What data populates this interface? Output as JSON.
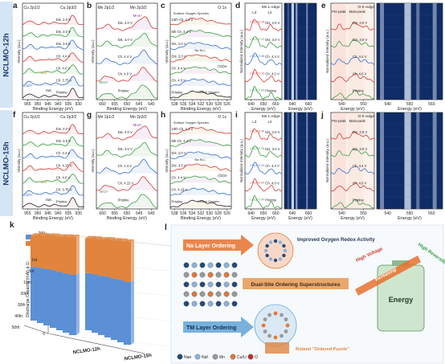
{
  "row_labels": [
    "NCLMO-12h",
    "NCLMO-15h"
  ],
  "panel_letters": [
    "a",
    "b",
    "c",
    "d",
    "e",
    "f",
    "g",
    "h",
    "i",
    "j",
    "k",
    "l"
  ],
  "xps_cu": {
    "xlabel": "Binding Energy (eV)",
    "ylabel": "Intensity (a.u.)",
    "xticks": [
      "955",
      "950",
      "945",
      "940",
      "935",
      "930"
    ],
    "peak_labels": [
      "Cu 2p1/2",
      "Cu 2p3/2"
    ],
    "species": [
      "Cu2+",
      "Sat.",
      "Cu+"
    ],
    "states_a": [
      "Dis. 2.0 V",
      "Dis. 3.0 V",
      "Dis. 3.5 V",
      "Ch. 4.4 V",
      "Ch. 4.0 V",
      "Ch. 3.75 V",
      "Pristine"
    ],
    "states_f": [
      "Dis. 2.0 V",
      "Dis. 3.5 V",
      "Ch. 4.4 V",
      "Ch. 4.15 V",
      "Ch. 4.0 V",
      "Ch. 3.75 V",
      "Pristine"
    ]
  },
  "xps_mn": {
    "xlabel": "Binding Energy (eV)",
    "ylabel": "Intensity (a.u.)",
    "xticks": [
      "660",
      "655",
      "650",
      "645",
      "640"
    ],
    "peak_labels": [
      "Mn 2p1/2",
      "Mn 2p3/2"
    ],
    "species": [
      "Mn4+",
      "Mn3+"
    ],
    "states_b": [
      "Dis. 2.0 V",
      "Dis. 3.0 V",
      "Ch. 4.4 V",
      "Ch. 4.0 V",
      "Pristine"
    ],
    "states_g": [
      "Dis. 2.0 V",
      "Dis. 3.0 V",
      "Ch. 4.4 V",
      "Ch. 4.15 V",
      "Pristine"
    ]
  },
  "xps_o": {
    "xlabel": "Binding Energy (eV)",
    "ylabel": "Intensity (a.u.)",
    "xticks": [
      "538",
      "536",
      "534",
      "532",
      "530",
      "528",
      "526"
    ],
    "title": "O 1s",
    "labels": [
      "Surface Oxygen Species",
      "(O2)n-",
      "Lattice Oxygen",
      "Na KLL"
    ],
    "states_c": [
      "10th Ch. 4.4 V",
      "5th Ch. 4.4 V",
      "Dis. 2.0 V",
      "Dis. 3.0 V",
      "Ch. 4.4 V",
      "Ch. 4.0 V",
      "Pristine"
    ],
    "states_h": [
      "10th Ch. 4.4 V",
      "5th Ch. 4.4 V",
      "Dis. 2.0 V",
      "Dis. 3.5 V",
      "Ch. 4.4 V",
      "Ch. 4.15 V",
      "Pristine"
    ]
  },
  "xas_mn": {
    "title": "Mn L-edge",
    "edge_labels": [
      "L3",
      "L2"
    ],
    "xlabel": "Energy (eV)",
    "ylabel": "Normalized Intensity (a.u.)",
    "xticks": [
      "640",
      "650",
      "660"
    ],
    "map_xticks": [
      "640",
      "660"
    ],
    "states": [
      "Dis. 2.0 V",
      "Dis. 3.0 V",
      "Ch. 4.4 V",
      "Ch. 4.0 V",
      "Pristine"
    ],
    "ratios_d": [
      "L3/L2=2.34",
      "L3/L2=2.22",
      "L3/L2=2.08",
      "L3/L2=2.10",
      "L3/L2=2.05"
    ],
    "ratios_i": [
      "L3/L2=2.40",
      "L3/L2=2.26",
      "L3/L2=2.23",
      "L3/L2=2.04",
      "L3/L2=2.04"
    ]
  },
  "xas_o": {
    "title": "O K-edge",
    "labels": [
      "Pre-peak",
      "Main-peak"
    ],
    "xlabel": "Energy (eV)",
    "ylabel": "Normalized Intensity (a.u.)",
    "xticks": [
      "540",
      "550"
    ],
    "map_xticks": [
      "540",
      "550",
      "560"
    ],
    "states": [
      "Dis. 2.0 V",
      "Dis. 3.0 V",
      "Ch. 4.4 V",
      "Ch. 4.0 V",
      "Pristine"
    ]
  },
  "chart_data": {
    "type": "bar",
    "ylabel": "Discharge Capacity (mAh g-1)",
    "categories": [
      "NCLMO-12h",
      "NCLMO-15h"
    ],
    "cycles": [
      "1st",
      "5th",
      "10th",
      "20th",
      "30th",
      "40th",
      "50th"
    ],
    "zticks": [
      "0",
      "50",
      "100",
      "150",
      "200"
    ],
    "legend_position": "top-left",
    "series": [
      {
        "name": "2.0~3.25 V",
        "color": "#5b8fd6",
        "values": [
          [
            120,
            118,
            116,
            115,
            112,
            110,
            107
          ],
          [
            125,
            124,
            122,
            121,
            118,
            116,
            114
          ]
        ]
      },
      {
        "name": "3.25~4.4 V",
        "color": "#e0843e",
        "values": [
          [
            75,
            73,
            70,
            68,
            66,
            65,
            62
          ],
          [
            80,
            78,
            76,
            74,
            72,
            71,
            69
          ]
        ]
      }
    ]
  },
  "schematic": {
    "na_title": "Na Layer Ordering",
    "tm_title": "TM Layer Ordering",
    "redox": "Improved Oxygen Redox Activity",
    "dual": "Dual-Site Ordering Superstructures",
    "high_voltage": "High Voltage",
    "high_rev": "High Reversibility",
    "increasing": "Increasing",
    "energy": "Energy",
    "robust": "Robust \"Ordered Puzzle\"",
    "legend": [
      "Nae",
      "Naf",
      "Mn",
      "Cu/Li",
      "O"
    ],
    "legend_colors": [
      "#244a7a",
      "#8db2d8",
      "#9a9a9a",
      "#e07a3a",
      "#c0302b"
    ]
  },
  "colors": {
    "row_band": "#cfe0f2",
    "cycle_red": "#d23b36",
    "cycle_green": "#3e9a46",
    "cycle_blue": "#3b6fc7",
    "cycle_black": "#222222",
    "map_dark": "#102c66",
    "map_light": "#d8e2f2",
    "orange": "#e0843e"
  }
}
